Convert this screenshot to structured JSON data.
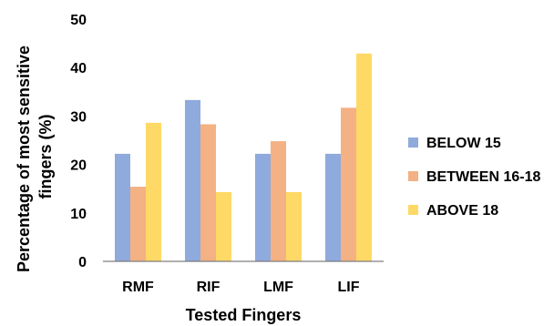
{
  "chart_data": {
    "type": "bar",
    "title": "",
    "xlabel": "Tested Fingers",
    "ylabel": "Percentage of most sensitive fingers (%)",
    "ylabel_lines": [
      "Percentage of most sensitive",
      "fingers (%)"
    ],
    "categories": [
      "RMF",
      "RIF",
      "LMF",
      "LIF"
    ],
    "ylim": [
      0,
      50
    ],
    "yticks": [
      0,
      10,
      20,
      30,
      40,
      50
    ],
    "grid": false,
    "legend_position": "right",
    "series": [
      {
        "name": "BELOW 15",
        "values": [
          22.2,
          33.3,
          22.2,
          22.2
        ],
        "color": "#8faadc"
      },
      {
        "name": "BETWEEN 16-18",
        "values": [
          15.4,
          28.3,
          24.8,
          31.7
        ],
        "color": "#f4b183"
      },
      {
        "name": "ABOVE 18",
        "values": [
          28.6,
          14.3,
          14.3,
          42.9
        ],
        "color": "#ffd966"
      }
    ]
  }
}
